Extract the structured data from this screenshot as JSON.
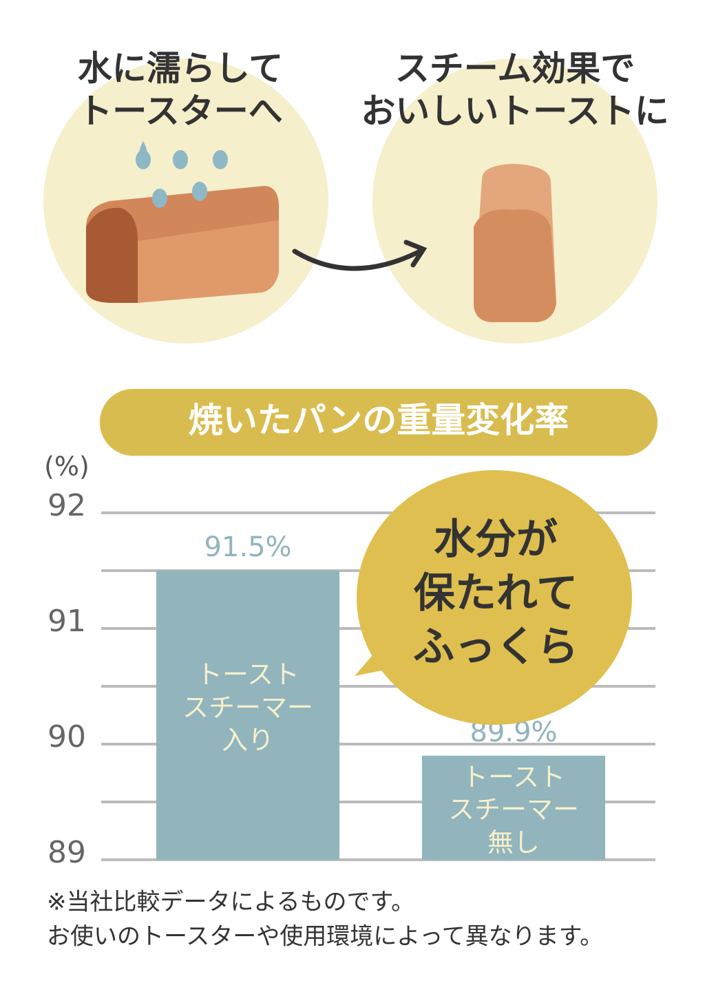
{
  "illustrations": [
    {
      "caption": [
        "水に濡らして",
        "トースターへ"
      ]
    },
    {
      "caption": [
        "スチーム効果で",
        "おいしいトーストに"
      ]
    }
  ],
  "chart_data": {
    "type": "bar",
    "title": "焼いたパンの重量変化率",
    "y_label": "(%)",
    "categories": [
      "トースト\nスチーマー\n入り",
      "トースト\nスチーマー\n無し"
    ],
    "values": [
      91.5,
      89.9
    ],
    "value_labels": [
      "91.5%",
      "89.9%"
    ],
    "color": "#91b4bd",
    "ylim": [
      89,
      92
    ],
    "yticks": [
      89,
      90,
      91,
      92
    ],
    "minor_yticks": [
      89.5,
      90.5,
      91.5
    ],
    "grid": true,
    "annotation": "水分が\n保たれて\nふっくら"
  },
  "footnote": [
    "※当社比較データによるものです。",
    "お使いのトースターや使用環境によって異なります。"
  ]
}
